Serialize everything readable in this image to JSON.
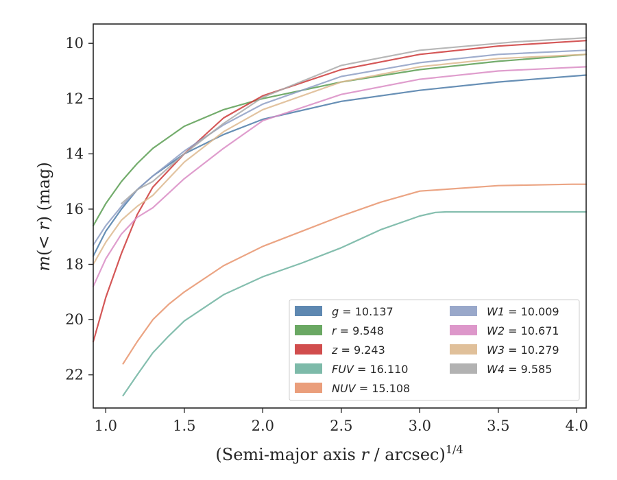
{
  "chart_data": {
    "type": "line",
    "xlabel_main": "(Semi-major axis ",
    "xlabel_var": "r",
    "xlabel_rest": " / arcsec)",
    "xlabel_sup": "1/4",
    "ylabel_main": "m",
    "ylabel_rest": "(< ",
    "ylabel_var": "r",
    "ylabel_tail": ") (mag)",
    "xlim": [
      0.92,
      4.06
    ],
    "ylim": [
      23.2,
      9.3
    ],
    "y_inverted": true,
    "xticks": [
      "1.0",
      "1.5",
      "2.0",
      "2.5",
      "3.0",
      "3.5",
      "4.0"
    ],
    "xtick_values": [
      1.0,
      1.5,
      2.0,
      2.5,
      3.0,
      3.5,
      4.0
    ],
    "yticks": [
      "10",
      "12",
      "14",
      "16",
      "18",
      "20",
      "22"
    ],
    "ytick_values": [
      10,
      12,
      14,
      16,
      18,
      20,
      22
    ],
    "grid": false,
    "legend_position": "lower-right",
    "series": [
      {
        "band": "g",
        "label": "= 10.137",
        "color": "#4c7ba8",
        "x": [
          0.92,
          1.0,
          1.1,
          1.2,
          1.3,
          1.5,
          1.75,
          2.0,
          2.5,
          3.0,
          3.5,
          4.06
        ],
        "y": [
          17.7,
          16.8,
          16.0,
          15.3,
          14.8,
          14.0,
          13.3,
          12.75,
          12.1,
          11.7,
          11.4,
          11.15
        ]
      },
      {
        "band": "r",
        "label": "= 9.548",
        "color": "#5a9e52",
        "x": [
          0.92,
          1.0,
          1.1,
          1.2,
          1.3,
          1.5,
          1.75,
          2.0,
          2.5,
          3.0,
          3.5,
          4.06
        ],
        "y": [
          16.6,
          15.8,
          15.0,
          14.35,
          13.8,
          13.0,
          12.4,
          12.0,
          11.4,
          10.95,
          10.65,
          10.4
        ]
      },
      {
        "band": "z",
        "label": "= 9.243",
        "color": "#cc3a3a",
        "x": [
          0.92,
          1.0,
          1.1,
          1.2,
          1.3,
          1.5,
          1.75,
          2.0,
          2.5,
          3.0,
          3.5,
          4.06
        ],
        "y": [
          20.8,
          19.2,
          17.6,
          16.2,
          15.2,
          14.0,
          12.7,
          11.9,
          10.95,
          10.4,
          10.1,
          9.9
        ]
      },
      {
        "band": "FUV",
        "label": "= 16.110",
        "color": "#6fb3a0",
        "x": [
          1.11,
          1.2,
          1.3,
          1.4,
          1.5,
          1.75,
          2.0,
          2.25,
          2.5,
          2.75,
          3.0,
          3.1,
          3.17,
          4.06
        ],
        "y": [
          22.75,
          22.0,
          21.2,
          20.6,
          20.05,
          19.1,
          18.45,
          17.95,
          17.4,
          16.75,
          16.25,
          16.12,
          16.1,
          16.1
        ]
      },
      {
        "band": "NUV",
        "label": "= 15.108",
        "color": "#e8946d",
        "x": [
          1.11,
          1.2,
          1.3,
          1.4,
          1.5,
          1.75,
          2.0,
          2.25,
          2.5,
          2.75,
          3.0,
          3.5,
          3.97,
          4.06
        ],
        "y": [
          21.6,
          20.8,
          20.0,
          19.45,
          19.0,
          18.05,
          17.35,
          16.8,
          16.25,
          15.75,
          15.35,
          15.15,
          15.1,
          15.1
        ]
      },
      {
        "band": "W1",
        "label": "= 10.009",
        "color": "#8e9fc4",
        "x": [
          0.92,
          1.0,
          1.1,
          1.2,
          1.3,
          1.5,
          1.75,
          2.0,
          2.5,
          3.0,
          3.5,
          4.06
        ],
        "y": [
          17.3,
          16.6,
          15.9,
          15.3,
          14.8,
          13.9,
          12.95,
          12.2,
          11.2,
          10.7,
          10.4,
          10.25
        ]
      },
      {
        "band": "W2",
        "label": "= 10.671",
        "color": "#d98cc4",
        "x": [
          0.92,
          1.0,
          1.1,
          1.2,
          1.3,
          1.5,
          1.75,
          2.0,
          2.5,
          3.0,
          3.5,
          4.06
        ],
        "y": [
          18.8,
          17.8,
          16.9,
          16.3,
          15.95,
          14.9,
          13.8,
          12.8,
          11.85,
          11.3,
          11.0,
          10.85
        ]
      },
      {
        "band": "W3",
        "label": "= 10.279",
        "color": "#ddb98f",
        "x": [
          0.92,
          1.0,
          1.1,
          1.2,
          1.3,
          1.5,
          1.75,
          2.0,
          2.5,
          3.0,
          3.5,
          4.06
        ],
        "y": [
          18.0,
          17.2,
          16.4,
          15.9,
          15.5,
          14.3,
          13.2,
          12.4,
          11.4,
          10.85,
          10.55,
          10.4
        ]
      },
      {
        "band": "W4",
        "label": "= 9.585",
        "color": "#aaaaaa",
        "x": [
          1.1,
          1.2,
          1.3,
          1.5,
          1.75,
          2.0,
          2.5,
          3.0,
          3.6,
          4.06
        ],
        "y": [
          15.8,
          15.3,
          15.0,
          14.0,
          12.9,
          11.95,
          10.8,
          10.25,
          9.95,
          9.8
        ]
      }
    ]
  }
}
